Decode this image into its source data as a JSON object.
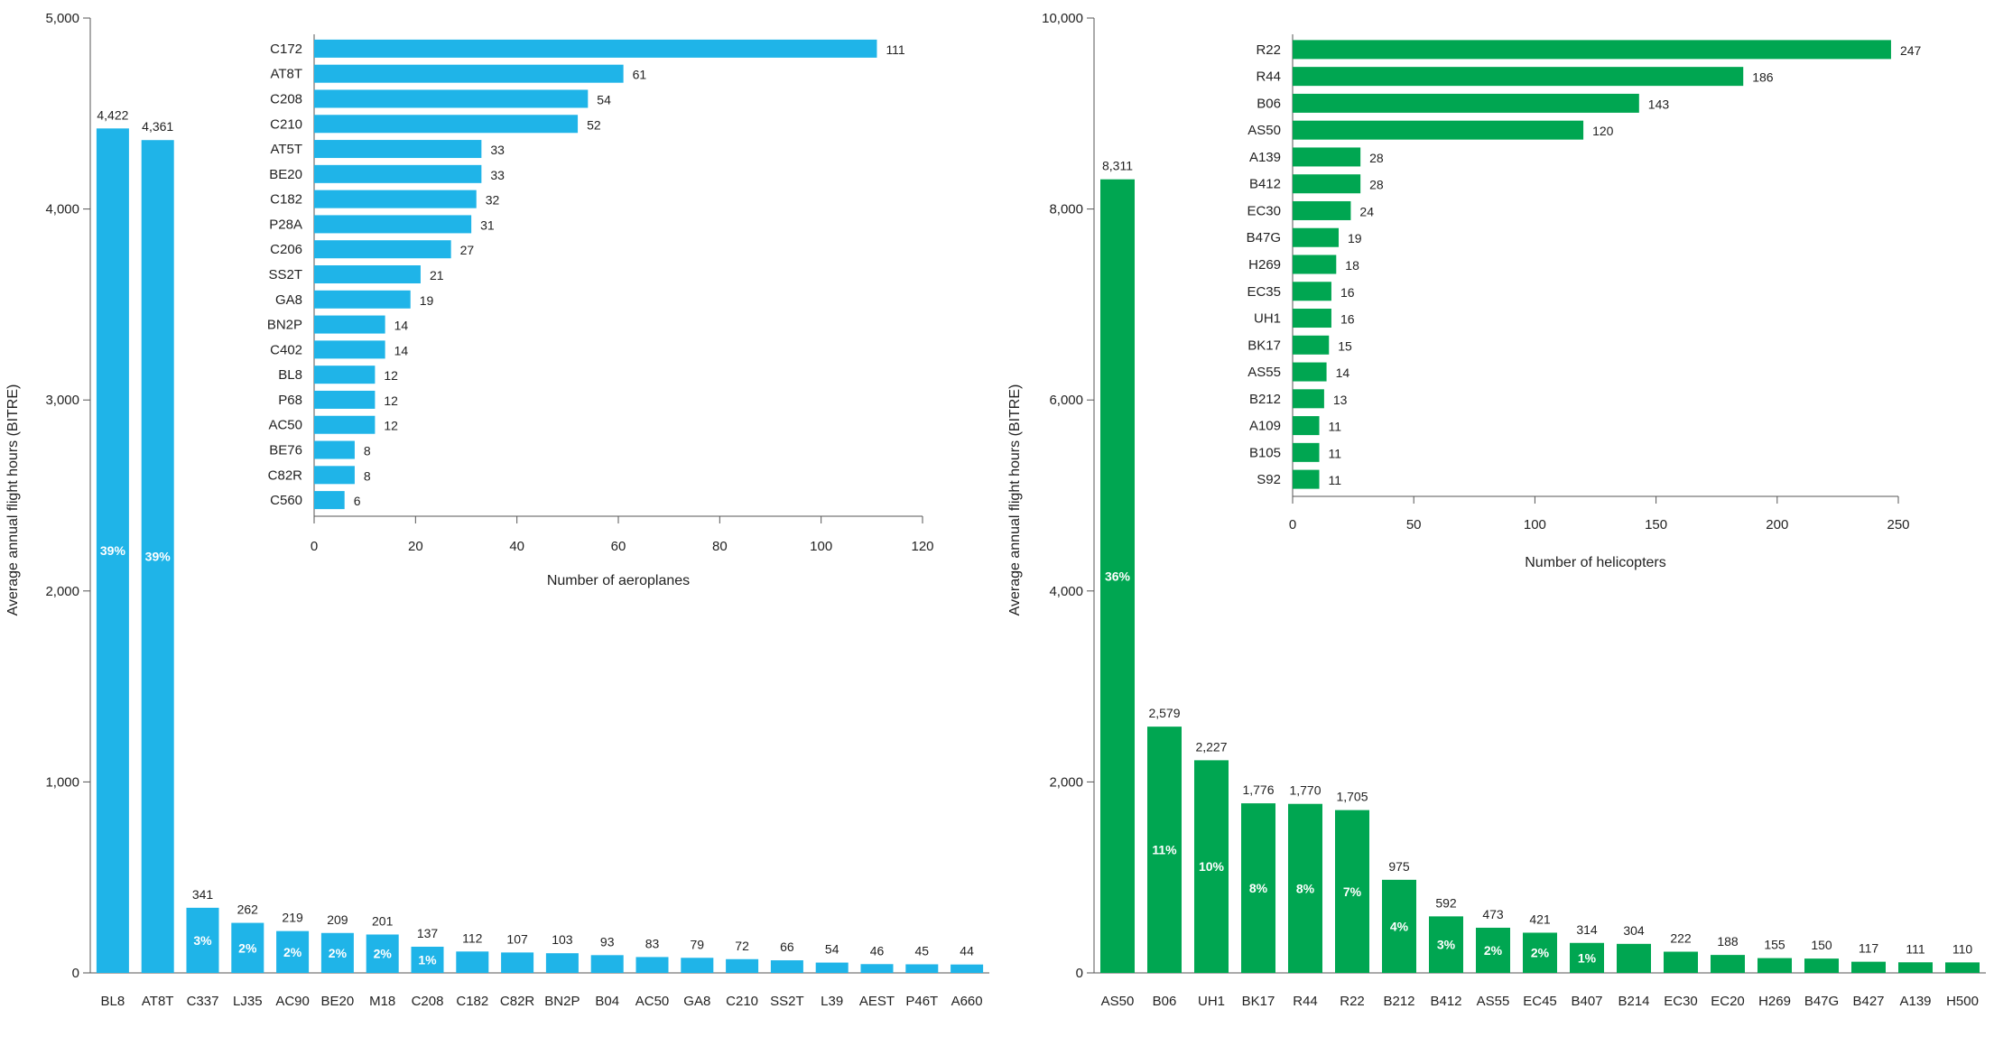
{
  "chart_data": [
    {
      "type": "bar",
      "color": "#1fb4e8",
      "ylabel": "Average annual flight hours (BITRE)",
      "ylim": [
        0,
        5000
      ],
      "yticks": [
        "0",
        "1,000",
        "2,000",
        "3,000",
        "4,000",
        "5,000"
      ],
      "categories": [
        "BL8",
        "AT8T",
        "C337",
        "LJ35",
        "AC90",
        "BE20",
        "M18",
        "C208",
        "C182",
        "C82R",
        "BN2P",
        "B04",
        "AC50",
        "GA8",
        "C210",
        "SS2T",
        "L39",
        "AEST",
        "P46T",
        "A660"
      ],
      "values": [
        4422,
        4361,
        341,
        262,
        219,
        209,
        201,
        137,
        112,
        107,
        103,
        93,
        83,
        79,
        72,
        66,
        54,
        46,
        45,
        44
      ],
      "value_labels": [
        "4,422",
        "4,361",
        "341",
        "262",
        "219",
        "209",
        "201",
        "137",
        "112",
        "107",
        "103",
        "93",
        "83",
        "79",
        "72",
        "66",
        "54",
        "46",
        "45",
        "44"
      ],
      "share_labels": [
        "39%",
        "39%",
        "3%",
        "2%",
        "2%",
        "2%",
        "2%",
        "1%",
        "",
        "",
        "",
        "",
        "",
        "",
        "",
        "",
        "",
        "",
        "",
        ""
      ]
    },
    {
      "type": "bar",
      "orientation": "horizontal",
      "color": "#1fb4e8",
      "xlabel": "Number of aeroplanes",
      "xlim": [
        0,
        120
      ],
      "xticks": [
        "0",
        "20",
        "40",
        "60",
        "80",
        "100",
        "120"
      ],
      "categories": [
        "C172",
        "AT8T",
        "C208",
        "C210",
        "AT5T",
        "BE20",
        "C182",
        "P28A",
        "C206",
        "SS2T",
        "GA8",
        "BN2P",
        "C402",
        "BL8",
        "P68",
        "AC50",
        "BE76",
        "C82R",
        "C560"
      ],
      "values": [
        111,
        61,
        54,
        52,
        33,
        33,
        32,
        31,
        27,
        21,
        19,
        14,
        14,
        12,
        12,
        12,
        8,
        8,
        6
      ],
      "value_labels": [
        "111",
        "61",
        "54",
        "52",
        "33",
        "33",
        "32",
        "31",
        "27",
        "21",
        "19",
        "14",
        "14",
        "12",
        "12",
        "12",
        "8",
        "8",
        "6"
      ]
    },
    {
      "type": "bar",
      "color": "#00a651",
      "ylabel": "Average annual flight hours (BITRE)",
      "ylim": [
        0,
        10000
      ],
      "yticks": [
        "0",
        "2,000",
        "4,000",
        "6,000",
        "8,000",
        "10,000"
      ],
      "categories": [
        "AS50",
        "B06",
        "UH1",
        "BK17",
        "R44",
        "R22",
        "B212",
        "B412",
        "AS55",
        "EC45",
        "B407",
        "B214",
        "EC30",
        "EC20",
        "H269",
        "B47G",
        "B427",
        "A139",
        "H500"
      ],
      "values": [
        8311,
        2579,
        2227,
        1776,
        1770,
        1705,
        975,
        592,
        473,
        421,
        314,
        304,
        222,
        188,
        155,
        150,
        117,
        111,
        110
      ],
      "value_labels": [
        "8,311",
        "2,579",
        "2,227",
        "1,776",
        "1,770",
        "1,705",
        "975",
        "592",
        "473",
        "421",
        "314",
        "304",
        "222",
        "188",
        "155",
        "150",
        "117",
        "111",
        "110"
      ],
      "share_labels": [
        "36%",
        "11%",
        "10%",
        "8%",
        "8%",
        "7%",
        "4%",
        "3%",
        "2%",
        "2%",
        "1%",
        "",
        "",
        "",
        "",
        "",
        "",
        "",
        ""
      ]
    },
    {
      "type": "bar",
      "orientation": "horizontal",
      "color": "#00a651",
      "xlabel": "Number of helicopters",
      "xlim": [
        0,
        250
      ],
      "xticks": [
        "0",
        "50",
        "100",
        "150",
        "200",
        "250"
      ],
      "categories": [
        "R22",
        "R44",
        "B06",
        "AS50",
        "A139",
        "B412",
        "EC30",
        "B47G",
        "H269",
        "EC35",
        "UH1",
        "BK17",
        "AS55",
        "B212",
        "A109",
        "B105",
        "S92"
      ],
      "values": [
        247,
        186,
        143,
        120,
        28,
        28,
        24,
        19,
        18,
        16,
        16,
        15,
        14,
        13,
        11,
        11,
        11
      ],
      "value_labels": [
        "247",
        "186",
        "143",
        "120",
        "28",
        "28",
        "24",
        "19",
        "18",
        "16",
        "16",
        "15",
        "14",
        "13",
        "11",
        "11",
        "11"
      ]
    }
  ]
}
